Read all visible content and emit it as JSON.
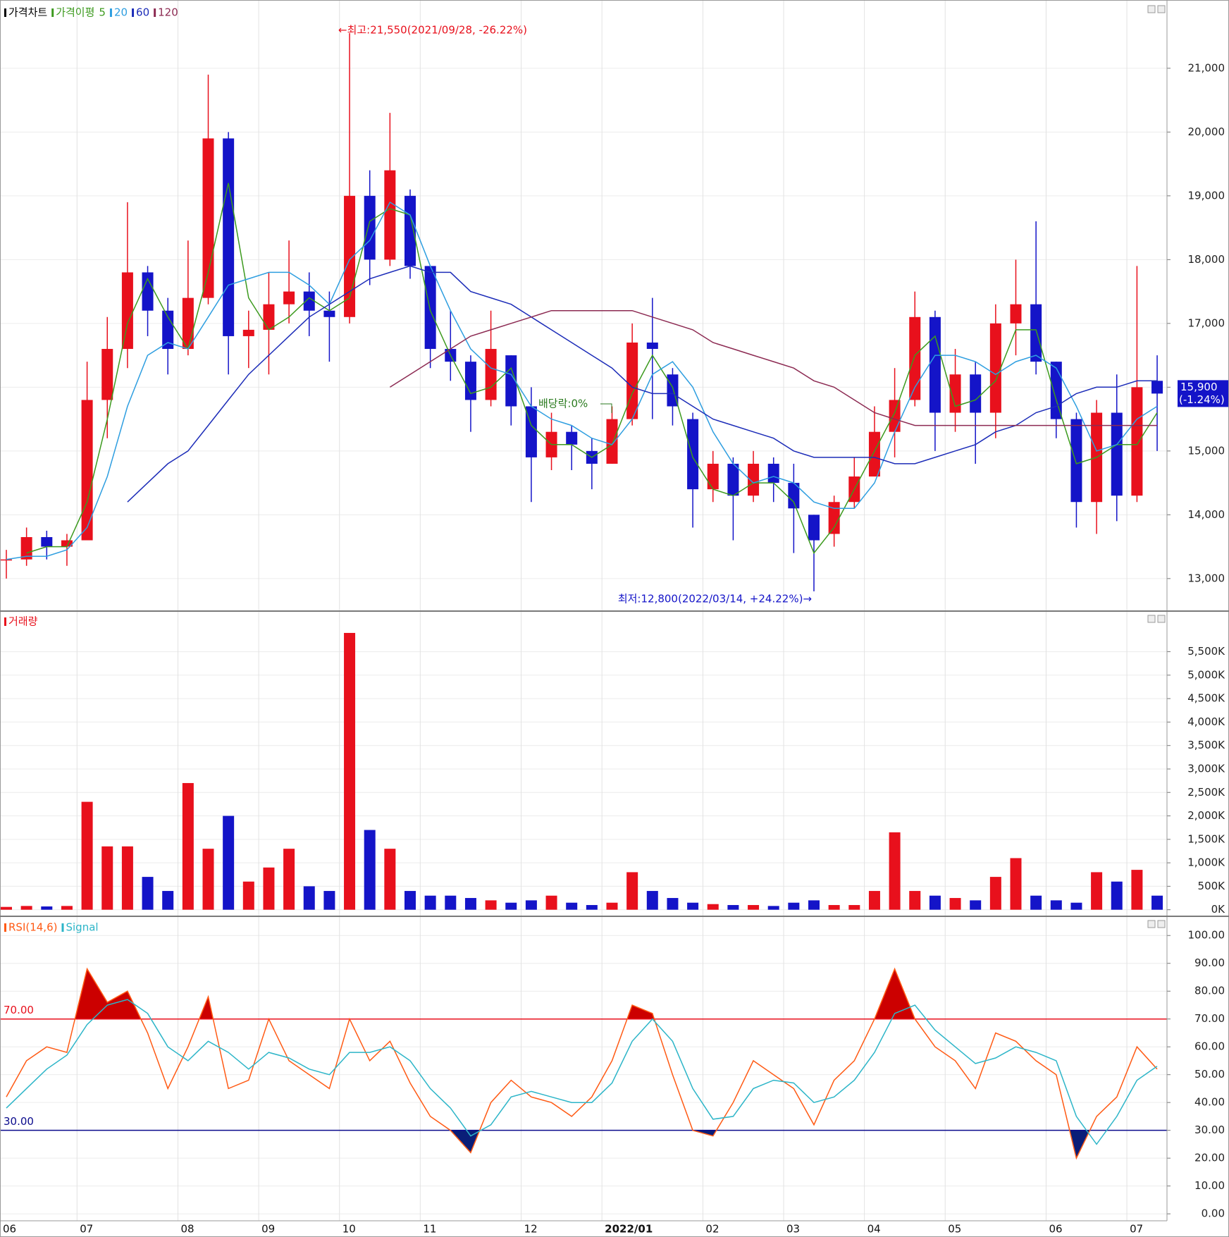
{
  "chart_data": [
    {
      "type": "candlestick",
      "title": "가격차트",
      "ma_title": "가격이평",
      "up_color": "#e8101c",
      "down_color": "#1414c8",
      "open": [
        13300,
        13300,
        13650,
        13500,
        13600,
        15800,
        16600,
        17800,
        17200,
        16600,
        17400,
        19900,
        16800,
        16900,
        17300,
        17500,
        17200,
        17100,
        19000,
        18000,
        19000,
        17900,
        16600,
        16400,
        15800,
        16500,
        15700,
        14900,
        15300,
        15000,
        14800,
        15500,
        16700,
        16200,
        15500,
        14400,
        14800,
        14300,
        14800,
        14500,
        14000,
        13700,
        14200,
        14600,
        15300,
        15800,
        17100,
        15600,
        16200,
        15600,
        17000,
        17300,
        16400,
        15500,
        14200,
        15600,
        14300,
        16100
      ],
      "high": [
        13450,
        13800,
        13750,
        13700,
        16400,
        17100,
        18900,
        17900,
        17400,
        18300,
        20900,
        20000,
        17200,
        17800,
        18300,
        17800,
        17500,
        21550,
        19400,
        20300,
        19100,
        17900,
        17200,
        16500,
        17200,
        16500,
        16000,
        15600,
        15400,
        15200,
        15700,
        17000,
        17400,
        16300,
        15600,
        15000,
        14900,
        15000,
        14900,
        14800,
        14000,
        14300,
        14900,
        15700,
        16300,
        17500,
        17200,
        16600,
        16400,
        17300,
        18000,
        18600,
        16400,
        15600,
        15800,
        16200,
        17900,
        16500
      ],
      "low": [
        13000,
        13200,
        13300,
        13200,
        13600,
        15200,
        16300,
        16800,
        16200,
        16500,
        17300,
        16200,
        16300,
        16200,
        17000,
        16800,
        16400,
        17000,
        17600,
        17900,
        17700,
        16300,
        16100,
        15300,
        15700,
        15400,
        14200,
        14700,
        14700,
        14400,
        14800,
        15400,
        15500,
        15400,
        13800,
        14200,
        13600,
        14200,
        14200,
        13400,
        12800,
        13500,
        14100,
        14600,
        14900,
        15700,
        15000,
        15300,
        14800,
        15200,
        16500,
        16200,
        15200,
        13800,
        13700,
        13900,
        14200,
        15000
      ],
      "close": [
        13300,
        13650,
        13500,
        13600,
        15800,
        16600,
        17800,
        17200,
        16600,
        17400,
        19900,
        16800,
        16900,
        17300,
        17500,
        17200,
        17100,
        19000,
        18000,
        19400,
        17900,
        16600,
        16400,
        15800,
        16600,
        15700,
        14900,
        15300,
        15100,
        14800,
        15500,
        16700,
        16600,
        15700,
        14400,
        14800,
        14300,
        14800,
        14500,
        14100,
        13600,
        14200,
        14600,
        15300,
        15800,
        17100,
        15600,
        16200,
        15600,
        17000,
        17300,
        16400,
        15500,
        14200,
        15600,
        14300,
        16000,
        15900
      ],
      "series": [
        {
          "name": "5",
          "color": "#3c9a1e",
          "values": [
            null,
            13400,
            13500,
            13500,
            14200,
            15500,
            17000,
            17700,
            17100,
            16600,
            17800,
            19200,
            17400,
            16900,
            17100,
            17400,
            17200,
            17400,
            18600,
            18800,
            18700,
            17200,
            16500,
            15900,
            16000,
            16300,
            15400,
            15100,
            15100,
            14900,
            15100,
            15900,
            16500,
            16000,
            14900,
            14400,
            14300,
            14500,
            14500,
            14200,
            13400,
            13800,
            14400,
            15000,
            15600,
            16500,
            16800,
            15700,
            15800,
            16100,
            16900,
            16900,
            15800,
            14800,
            14900,
            15100,
            15100,
            15600
          ]
        },
        {
          "name": "20",
          "color": "#2e9ee0",
          "values": [
            13300,
            13350,
            13350,
            13450,
            13800,
            14600,
            15700,
            16500,
            16700,
            16600,
            17100,
            17600,
            17700,
            17800,
            17800,
            17600,
            17300,
            18000,
            18300,
            18900,
            18700,
            17900,
            17200,
            16600,
            16300,
            16200,
            15700,
            15500,
            15400,
            15200,
            15100,
            15500,
            16200,
            16400,
            16000,
            15300,
            14800,
            14500,
            14600,
            14500,
            14200,
            14100,
            14100,
            14500,
            15300,
            16000,
            16500,
            16500,
            16400,
            16200,
            16400,
            16500,
            16300,
            15700,
            15000,
            15100,
            15500,
            15700
          ]
        },
        {
          "name": "60",
          "color": "#1c2cb8",
          "values": [
            null,
            null,
            null,
            null,
            null,
            null,
            14200,
            14500,
            14800,
            15000,
            15400,
            15800,
            16200,
            16500,
            16800,
            17100,
            17300,
            17500,
            17700,
            17800,
            17900,
            17800,
            17800,
            17500,
            17400,
            17300,
            17100,
            16900,
            16700,
            16500,
            16300,
            16000,
            15900,
            15900,
            15700,
            15500,
            15400,
            15300,
            15200,
            15000,
            14900,
            14900,
            14900,
            14900,
            14800,
            14800,
            14900,
            15000,
            15100,
            15300,
            15400,
            15600,
            15700,
            15900,
            16000,
            16000,
            16100,
            16100
          ]
        },
        {
          "name": "120",
          "color": "#8c2a52",
          "values": [
            null,
            null,
            null,
            null,
            null,
            null,
            null,
            null,
            null,
            null,
            null,
            null,
            null,
            null,
            null,
            null,
            null,
            null,
            null,
            16000,
            16200,
            16400,
            16600,
            16800,
            16900,
            17000,
            17100,
            17200,
            17200,
            17200,
            17200,
            17200,
            17100,
            17000,
            16900,
            16700,
            16600,
            16500,
            16400,
            16300,
            16100,
            16000,
            15800,
            15600,
            15500,
            15400,
            15400,
            15400,
            15400,
            15400,
            15400,
            15400,
            15400,
            15400,
            15400,
            15400,
            15400,
            15400
          ]
        }
      ],
      "ylim": [
        12490,
        22070
      ],
      "yticks": [
        {
          "value": 13000,
          "label": "13,000"
        },
        {
          "value": 14000,
          "label": "14,000"
        },
        {
          "value": 15000,
          "label": "15,000"
        },
        {
          "value": 16000,
          "label": "16,000"
        },
        {
          "value": 17000,
          "label": "17,000"
        },
        {
          "value": 18000,
          "label": "18,000"
        },
        {
          "value": 19000,
          "label": "19,000"
        },
        {
          "value": 20000,
          "label": "20,000"
        },
        {
          "value": 21000,
          "label": "21,000"
        }
      ],
      "annotations": [
        "←최고:21,550(2021/09/28, -26.22%)",
        "최저:12,800(2022/03/14, +24.22%)→",
        "배당락:0%"
      ],
      "last_price_label": "15,900",
      "last_change_label": "(-1.24%)"
    },
    {
      "type": "bar",
      "title": "거래량",
      "color": "#e8101c",
      "values": [
        60,
        80,
        70,
        80,
        2300,
        1350,
        1350,
        700,
        400,
        2700,
        1300,
        2000,
        600,
        900,
        1300,
        500,
        400,
        5900,
        1700,
        1300,
        400,
        300,
        300,
        250,
        200,
        150,
        200,
        300,
        150,
        100,
        150,
        800,
        400,
        250,
        150,
        120,
        100,
        100,
        80,
        150,
        200,
        100,
        100,
        400,
        1650,
        400,
        300,
        250,
        200,
        700,
        1100,
        300,
        200,
        150,
        800,
        600,
        850,
        300
      ],
      "ylim": [
        -140,
        6365
      ],
      "yticks": [
        {
          "value": 0,
          "label": "0K"
        },
        {
          "value": 500,
          "label": "500K"
        },
        {
          "value": 1000,
          "label": "1,000K"
        },
        {
          "value": 1500,
          "label": "1,500K"
        },
        {
          "value": 2000,
          "label": "2,000K"
        },
        {
          "value": 2500,
          "label": "2,500K"
        },
        {
          "value": 3000,
          "label": "3,000K"
        },
        {
          "value": 3500,
          "label": "3,500K"
        },
        {
          "value": 4000,
          "label": "4,000K"
        },
        {
          "value": 4500,
          "label": "4,500K"
        },
        {
          "value": 5000,
          "label": "5,000K"
        },
        {
          "value": 5500,
          "label": "5,500K"
        }
      ]
    },
    {
      "type": "line",
      "categories": [
        "06",
        null,
        null,
        null,
        "07",
        null,
        null,
        null,
        null,
        "08",
        null,
        null,
        null,
        "09",
        null,
        null,
        null,
        "10",
        null,
        null,
        null,
        "11",
        null,
        null,
        null,
        null,
        "12",
        null,
        null,
        null,
        "2022/01",
        null,
        null,
        null,
        null,
        "02",
        null,
        null,
        null,
        "03",
        null,
        null,
        null,
        "04",
        null,
        null,
        null,
        "05",
        null,
        null,
        null,
        null,
        "06",
        null,
        null,
        null,
        "07",
        null
      ],
      "series": [
        {
          "name": "RSI(14,6)",
          "color": "#ff5a14",
          "values": [
            42,
            55,
            60,
            58,
            88,
            76,
            80,
            65,
            45,
            60,
            78,
            45,
            48,
            70,
            55,
            50,
            45,
            70,
            55,
            62,
            47,
            35,
            30,
            22,
            40,
            48,
            42,
            40,
            35,
            42,
            55,
            75,
            72,
            50,
            30,
            28,
            40,
            55,
            50,
            45,
            32,
            48,
            55,
            70,
            88,
            70,
            60,
            55,
            45,
            65,
            62,
            55,
            50,
            20,
            35,
            42,
            60,
            52
          ]
        },
        {
          "name": "Signal",
          "color": "#2cb5c8",
          "values": [
            38,
            45,
            52,
            57,
            68,
            75,
            77,
            72,
            60,
            55,
            62,
            58,
            52,
            58,
            56,
            52,
            50,
            58,
            58,
            60,
            55,
            45,
            38,
            28,
            32,
            42,
            44,
            42,
            40,
            40,
            47,
            62,
            70,
            62,
            45,
            34,
            35,
            45,
            48,
            47,
            40,
            42,
            48,
            58,
            72,
            75,
            66,
            60,
            54,
            56,
            60,
            58,
            55,
            35,
            25,
            35,
            48,
            53
          ]
        }
      ],
      "levels": [
        {
          "value": 70,
          "label": "70.00",
          "color": "#e8101c",
          "fill_color": "#cc0000"
        },
        {
          "value": 30,
          "label": "30.00",
          "color": "#0a0a8c",
          "fill_color": "#0a1e78"
        }
      ],
      "ylim": [
        -2.5,
        106.9
      ],
      "yticks": [
        {
          "value": 0,
          "label": "0.00"
        },
        {
          "value": 10,
          "label": "10.00"
        },
        {
          "value": 20,
          "label": "20.00"
        },
        {
          "value": 30,
          "label": "30.00"
        },
        {
          "value": 40,
          "label": "40.00"
        },
        {
          "value": 50,
          "label": "50.00"
        },
        {
          "value": 60,
          "label": "60.00"
        },
        {
          "value": 70,
          "label": "70.00"
        },
        {
          "value": 80,
          "label": "80.00"
        },
        {
          "value": 90,
          "label": "90.00"
        },
        {
          "value": 100,
          "label": "100.00"
        }
      ]
    }
  ]
}
